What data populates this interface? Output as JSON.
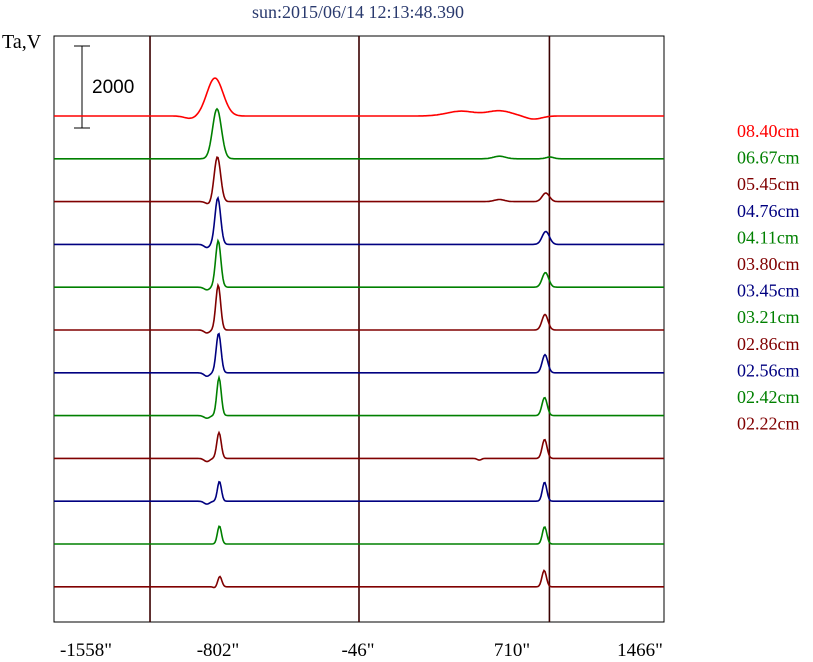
{
  "chart_data": {
    "type": "line",
    "title": "sun:2015/06/14 12:13:48.390",
    "ylabel": "Ta,V",
    "xlabel": "",
    "x_ticks": [
      "-1558\"",
      "-802\"",
      "-46\"",
      "710\"",
      "1466\""
    ],
    "x_tick_values": [
      -1558,
      -802,
      -46,
      710,
      1466
    ],
    "xlim": [
      -1558,
      1466
    ],
    "vertical_markers": [
      -1082,
      -46,
      898
    ],
    "scale_bar_label": "2000",
    "scale_bar_value": 2000,
    "grid": false,
    "legend_position": "right",
    "series": [
      {
        "name": "08.40cm",
        "color": "#ff0000",
        "peaks": [
          {
            "x": -760,
            "amp": 2200,
            "w": 40
          },
          {
            "x": 460,
            "amp": 280,
            "w": 70
          },
          {
            "x": 650,
            "amp": 300,
            "w": 60
          }
        ],
        "dips": [
          {
            "x": -880,
            "amp": 150,
            "w": 30
          },
          {
            "x": 820,
            "amp": 180,
            "w": 40
          }
        ]
      },
      {
        "name": "06.67cm",
        "color": "#008000",
        "peaks": [
          {
            "x": -750,
            "amp": 2900,
            "w": 22
          },
          {
            "x": 650,
            "amp": 150,
            "w": 30
          },
          {
            "x": 900,
            "amp": 100,
            "w": 20
          }
        ],
        "dips": []
      },
      {
        "name": "05.45cm",
        "color": "#800000",
        "peaks": [
          {
            "x": -748,
            "amp": 2600,
            "w": 16
          },
          {
            "x": 650,
            "amp": 120,
            "w": 25
          },
          {
            "x": 880,
            "amp": 500,
            "w": 18
          }
        ],
        "dips": [
          {
            "x": -790,
            "amp": 150,
            "w": 15
          }
        ]
      },
      {
        "name": "04.76cm",
        "color": "#000080",
        "peaks": [
          {
            "x": -746,
            "amp": 2700,
            "w": 14
          },
          {
            "x": 880,
            "amp": 750,
            "w": 18
          }
        ],
        "dips": [
          {
            "x": -800,
            "amp": 180,
            "w": 14
          }
        ]
      },
      {
        "name": "04.11cm",
        "color": "#008000",
        "peaks": [
          {
            "x": -744,
            "amp": 2700,
            "w": 13
          },
          {
            "x": 878,
            "amp": 850,
            "w": 16
          }
        ],
        "dips": [
          {
            "x": -800,
            "amp": 150,
            "w": 14
          }
        ]
      },
      {
        "name": "03.80cm",
        "color": "#800000",
        "peaks": [
          {
            "x": -744,
            "amp": 2600,
            "w": 12
          },
          {
            "x": 876,
            "amp": 900,
            "w": 15
          }
        ],
        "dips": [
          {
            "x": -800,
            "amp": 170,
            "w": 14
          }
        ]
      },
      {
        "name": "03.45cm",
        "color": "#000080",
        "peaks": [
          {
            "x": -742,
            "amp": 2300,
            "w": 12
          },
          {
            "x": 876,
            "amp": 1050,
            "w": 14
          }
        ],
        "dips": [
          {
            "x": -800,
            "amp": 200,
            "w": 14
          }
        ]
      },
      {
        "name": "03.21cm",
        "color": "#008000",
        "peaks": [
          {
            "x": -740,
            "amp": 2200,
            "w": 11
          },
          {
            "x": 874,
            "amp": 1050,
            "w": 13
          }
        ],
        "dips": [
          {
            "x": -800,
            "amp": 150,
            "w": 14
          }
        ]
      },
      {
        "name": "02.86cm",
        "color": "#800000",
        "peaks": [
          {
            "x": -740,
            "amp": 1500,
            "w": 11
          },
          {
            "x": 874,
            "amp": 1100,
            "w": 12
          }
        ],
        "dips": [
          {
            "x": -800,
            "amp": 180,
            "w": 14
          },
          {
            "x": 550,
            "amp": 100,
            "w": 10
          }
        ]
      },
      {
        "name": "02.56cm",
        "color": "#000080",
        "peaks": [
          {
            "x": -738,
            "amp": 1150,
            "w": 10
          },
          {
            "x": 874,
            "amp": 1100,
            "w": 11
          }
        ],
        "dips": [
          {
            "x": -800,
            "amp": 170,
            "w": 14
          }
        ]
      },
      {
        "name": "02.42cm",
        "color": "#008000",
        "peaks": [
          {
            "x": -738,
            "amp": 1050,
            "w": 10
          },
          {
            "x": 874,
            "amp": 1000,
            "w": 11
          }
        ],
        "dips": []
      },
      {
        "name": "02.22cm",
        "color": "#800000",
        "peaks": [
          {
            "x": -736,
            "amp": 600,
            "w": 10
          },
          {
            "x": 872,
            "amp": 950,
            "w": 11
          }
        ],
        "dips": [
          {
            "x": -760,
            "amp": 60,
            "w": 8
          }
        ]
      }
    ]
  }
}
